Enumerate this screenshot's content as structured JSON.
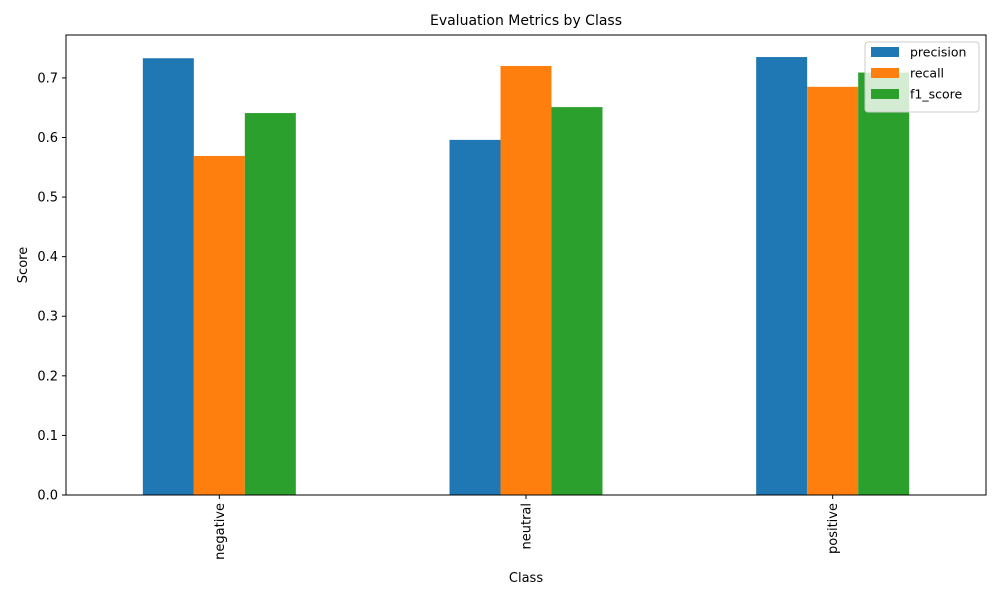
{
  "chart_data": {
    "type": "bar",
    "title": "Evaluation Metrics by Class",
    "xlabel": "Class",
    "ylabel": "Score",
    "categories": [
      "negative",
      "neutral",
      "positive"
    ],
    "series": [
      {
        "name": "precision",
        "color": "#1f77b4",
        "values": [
          0.733,
          0.596,
          0.735
        ]
      },
      {
        "name": "recall",
        "color": "#ff7f0e",
        "values": [
          0.569,
          0.72,
          0.685
        ]
      },
      {
        "name": "f1_score",
        "color": "#2ca02c",
        "values": [
          0.641,
          0.651,
          0.709
        ]
      }
    ],
    "ylim": [
      0,
      0.772
    ],
    "yticks": [
      "0.0",
      "0.1",
      "0.2",
      "0.3",
      "0.4",
      "0.5",
      "0.6",
      "0.7"
    ],
    "legend_position": "top-right",
    "grid": false,
    "x_tick_label_rotation": "vertical"
  }
}
